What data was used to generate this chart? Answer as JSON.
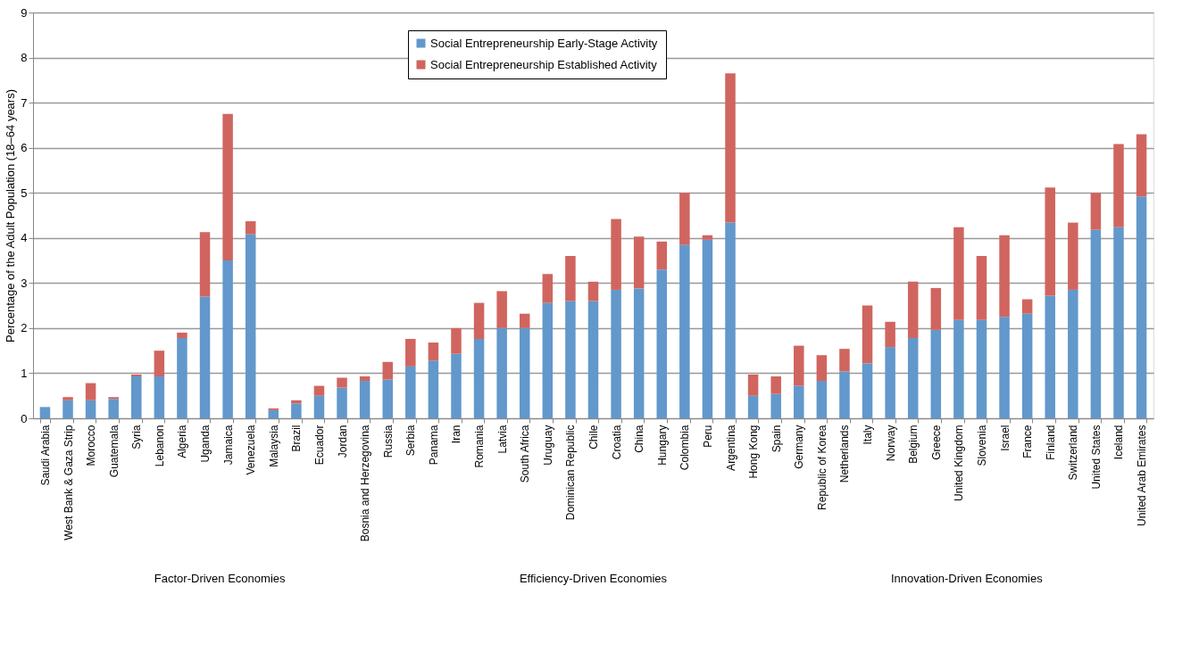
{
  "chart_data": {
    "type": "bar",
    "stacked": true,
    "ylabel": "Percentage of the Adult Population (18–64 years)",
    "categories": [
      "Saudi Arabia",
      "West Bank & Gaza Strip",
      "Morocco",
      "Guatemala",
      "Syria",
      "Lebanon",
      "Algeria",
      "Uganda",
      "Jamaica",
      "Venezuela",
      "Malaysia",
      "Brazil",
      "Ecuador",
      "Jordan",
      "Bosnia and Herzegovina",
      "Russia",
      "Serbia",
      "Panama",
      "Iran",
      "Romania",
      "Latvia",
      "South Africa",
      "Uruguay",
      "Dominican Republic",
      "Chile",
      "Croatia",
      "China",
      "Hungary",
      "Colombia",
      "Peru",
      "Argentina",
      "Hong Kong",
      "Spain",
      "Germany",
      "Republic of Korea",
      "Netherlands",
      "Italy",
      "Norway",
      "Belgium",
      "Greece",
      "United Kingdom",
      "Slovenia",
      "Israel",
      "France",
      "Finland",
      "Switzerland",
      "United States",
      "Iceland",
      "United Arab Emirates"
    ],
    "series": [
      {
        "name": "Social Entrepreneurship Early-Stage Activity",
        "color": "#6298cb",
        "values": [
          0.25,
          0.4,
          0.4,
          0.43,
          0.93,
          0.93,
          1.78,
          2.7,
          3.5,
          4.08,
          0.18,
          0.33,
          0.5,
          0.68,
          0.83,
          0.86,
          1.15,
          1.28,
          1.43,
          1.76,
          2.0,
          2.0,
          2.56,
          2.6,
          2.6,
          2.85,
          2.88,
          3.3,
          3.85,
          3.96,
          4.34,
          0.5,
          0.54,
          0.72,
          0.83,
          1.04,
          1.22,
          1.58,
          1.78,
          1.96,
          2.18,
          2.18,
          2.25,
          2.32,
          2.72,
          2.85,
          4.18,
          4.24,
          4.92
        ]
      },
      {
        "name": "Social Entrepreneurship Established Activity",
        "color": "#d0655f",
        "values": [
          0,
          0.07,
          0.38,
          0.04,
          0.04,
          0.57,
          0.12,
          1.43,
          3.25,
          0.29,
          0.04,
          0.07,
          0.22,
          0.22,
          0.1,
          0.39,
          0.61,
          0.4,
          0.57,
          0.8,
          0.82,
          0.32,
          0.64,
          1.0,
          0.43,
          1.57,
          1.15,
          0.62,
          1.15,
          0.1,
          3.31,
          0.47,
          0.39,
          0.89,
          0.57,
          0.5,
          1.28,
          0.56,
          1.25,
          0.93,
          2.06,
          1.42,
          1.81,
          0.32,
          2.4,
          1.49,
          0.82,
          1.84,
          1.38
        ]
      }
    ],
    "ylim": [
      0,
      9
    ],
    "yticks": [
      0,
      1,
      2,
      3,
      4,
      5,
      6,
      7,
      8,
      9
    ],
    "grid": "y",
    "legend": "top",
    "annotations": [
      "Factor-Driven Economies",
      "Efficiency-Driven Economies",
      "Innovation-Driven Economies"
    ]
  }
}
